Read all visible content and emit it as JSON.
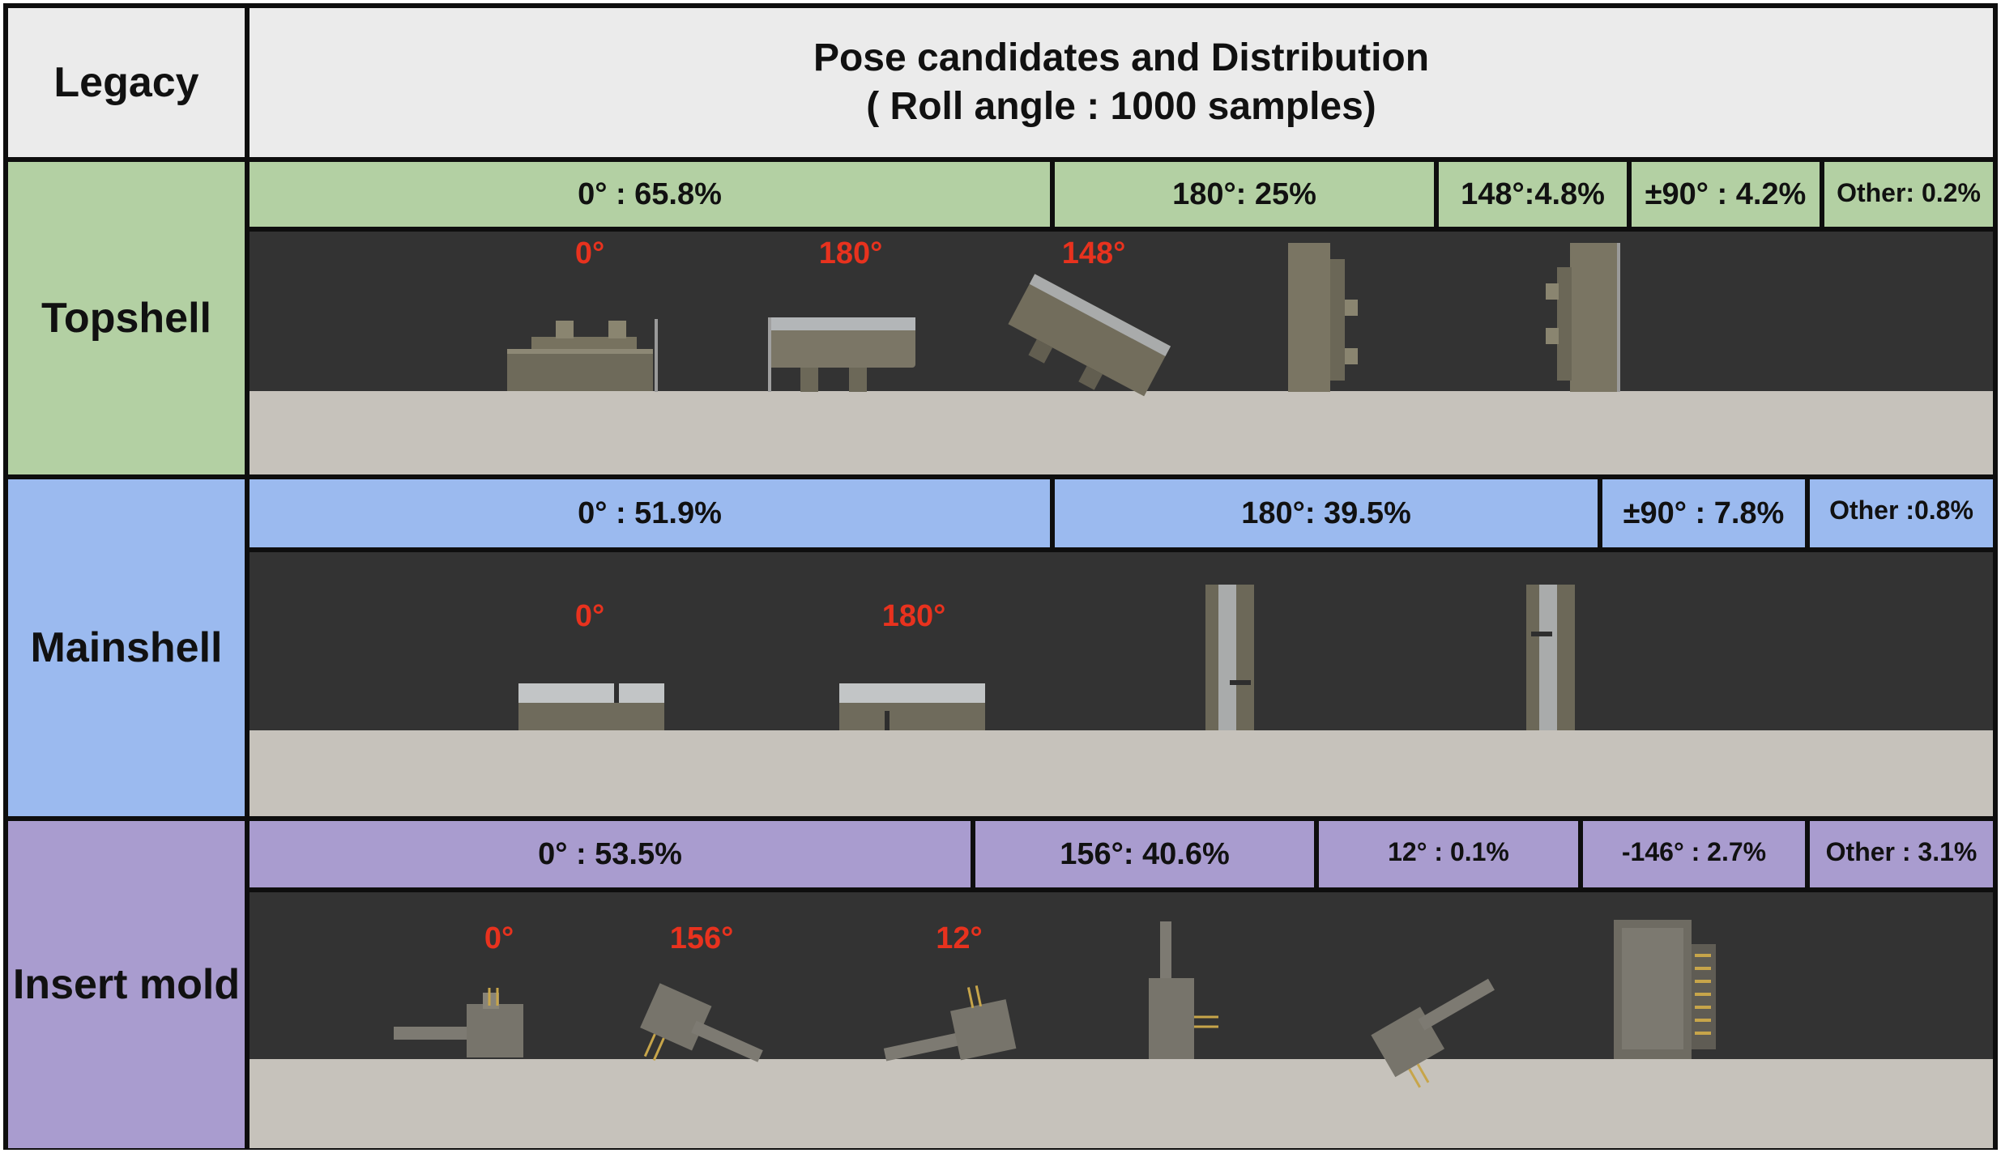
{
  "header": {
    "left": "Legacy",
    "title_line1": "Pose candidates and Distribution",
    "title_line2": "( Roll angle : 1000 samples)"
  },
  "colors": {
    "topshell": "#b3d0a3",
    "mainshell": "#9bbaef",
    "insert_mold": "#a99ccf",
    "angle_label": "#e8321e",
    "stage": "#333333",
    "floor": "#c6c2bb"
  },
  "rows": [
    {
      "name": "Topshell",
      "distribution": [
        {
          "label": "0° : 65.8%",
          "angle": "0°",
          "percent": 65.8
        },
        {
          "label": "180°: 25%",
          "angle": "180°",
          "percent": 25
        },
        {
          "label": "148°:4.8%",
          "angle": "148°",
          "percent": 4.8
        },
        {
          "label": "±90° : 4.2%",
          "angle": "±90°",
          "percent": 4.2
        },
        {
          "label": "Other: 0.2%",
          "angle": "Other",
          "percent": 0.2
        }
      ],
      "pose_labels": [
        "0°",
        "180°",
        "148°"
      ]
    },
    {
      "name": "Mainshell",
      "distribution": [
        {
          "label": "0° : 51.9%",
          "angle": "0°",
          "percent": 51.9
        },
        {
          "label": "180°: 39.5%",
          "angle": "180°",
          "percent": 39.5
        },
        {
          "label": "±90° : 7.8%",
          "angle": "±90°",
          "percent": 7.8
        },
        {
          "label": "Other :0.8%",
          "angle": "Other",
          "percent": 0.8
        }
      ],
      "pose_labels": [
        "0°",
        "180°"
      ]
    },
    {
      "name": "Insert mold",
      "distribution": [
        {
          "label": "0° : 53.5%",
          "angle": "0°",
          "percent": 53.5
        },
        {
          "label": "156°: 40.6%",
          "angle": "156°",
          "percent": 40.6
        },
        {
          "label": "12° : 0.1%",
          "angle": "12°",
          "percent": 0.1
        },
        {
          "label": "-146° : 2.7%",
          "angle": "-146°",
          "percent": 2.7
        },
        {
          "label": "Other : 3.1%",
          "angle": "Other",
          "percent": 3.1
        }
      ],
      "pose_labels": [
        "0°",
        "156°",
        "12°"
      ]
    }
  ]
}
